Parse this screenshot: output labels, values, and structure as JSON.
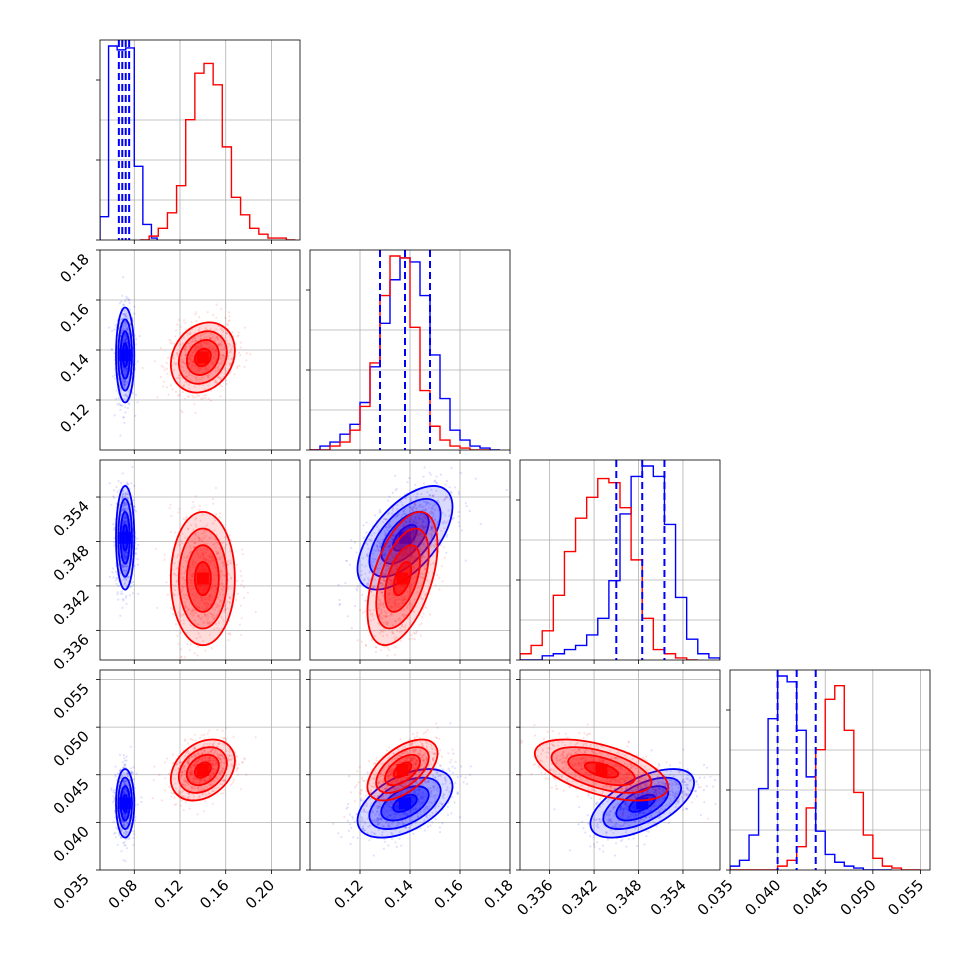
{
  "chart_data": {
    "type": "corner-plot",
    "colors": {
      "series_a": "#0000ff",
      "series_b": "#ff0000",
      "grid": "#b0b0b0"
    },
    "parameters": [
      {
        "range": [
          0.05,
          0.225
        ],
        "ticks": [
          0.08,
          0.12,
          0.16,
          0.2
        ],
        "tick_labels": [
          "0.08",
          "0.12",
          "0.16",
          "0.20"
        ]
      },
      {
        "range": [
          0.1,
          0.18
        ],
        "ticks": [
          0.12,
          0.14,
          0.16,
          0.18
        ],
        "tick_labels": [
          "0.12",
          "0.14",
          "0.16",
          "0.18"
        ]
      },
      {
        "range": [
          0.332,
          0.359
        ],
        "ticks": [
          0.336,
          0.342,
          0.348,
          0.354
        ],
        "tick_labels": [
          "0.336",
          "0.342",
          "0.348",
          "0.354"
        ]
      },
      {
        "range": [
          0.035,
          0.056
        ],
        "ticks": [
          0.035,
          0.04,
          0.045,
          0.05,
          0.055
        ],
        "tick_labels": [
          "0.035",
          "0.040",
          "0.045",
          "0.050",
          "0.055"
        ]
      }
    ],
    "series": [
      {
        "color": "#0000ff",
        "means": [
          0.072,
          0.138,
          0.3485,
          0.042
        ],
        "sds": [
          0.004,
          0.0095,
          0.0035,
          0.0018
        ],
        "correlations": {
          "0-1": 0.0,
          "0-2": 0.0,
          "0-3": 0.0,
          "1-2": 0.6,
          "1-3": 0.5,
          "2-3": 0.6
        },
        "quantiles": [
          [
            0.0665,
            0.0695,
            0.0725,
            0.0755
          ],
          [
            0.128,
            0.138,
            0.148
          ],
          [
            0.345,
            0.3485,
            0.3515
          ],
          [
            0.04,
            0.042,
            0.044
          ]
        ],
        "histograms": [
          {
            "edges": [
              0.05,
              0.0575,
              0.065,
              0.0725,
              0.08,
              0.0875,
              0.095,
              0.1
            ],
            "counts": [
              0.12,
              1.0,
              0.98,
              0.99,
              0.38,
              0.08,
              0.01
            ]
          },
          {
            "edges": [
              0.1,
              0.104,
              0.108,
              0.112,
              0.116,
              0.12,
              0.124,
              0.128,
              0.132,
              0.136,
              0.14,
              0.144,
              0.148,
              0.152,
              0.156,
              0.16,
              0.164,
              0.168,
              0.172,
              0.176
            ],
            "counts": [
              0.0,
              0.02,
              0.04,
              0.08,
              0.13,
              0.24,
              0.42,
              0.64,
              0.86,
              0.97,
              0.95,
              0.78,
              0.48,
              0.26,
              0.1,
              0.05,
              0.02,
              0.01,
              0.0
            ]
          },
          {
            "edges": [
              0.332,
              0.3335,
              0.335,
              0.3365,
              0.338,
              0.3395,
              0.341,
              0.3425,
              0.344,
              0.3455,
              0.347,
              0.3485,
              0.35,
              0.3515,
              0.353,
              0.3545,
              0.356,
              0.3575,
              0.359
            ],
            "counts": [
              0.0,
              0.0,
              0.02,
              0.03,
              0.05,
              0.07,
              0.12,
              0.2,
              0.38,
              0.7,
              0.88,
              0.93,
              0.88,
              0.65,
              0.3,
              0.1,
              0.03,
              0.01
            ]
          },
          {
            "edges": [
              0.035,
              0.036,
              0.037,
              0.038,
              0.039,
              0.04,
              0.041,
              0.042,
              0.043,
              0.044,
              0.045,
              0.046,
              0.047,
              0.048,
              0.049,
              0.05,
              0.051,
              0.052
            ],
            "counts": [
              0.02,
              0.05,
              0.18,
              0.42,
              0.78,
              1.0,
              0.97,
              0.72,
              0.48,
              0.2,
              0.08,
              0.04,
              0.02,
              0.01,
              0.0,
              0.0,
              0.0
            ]
          }
        ]
      },
      {
        "color": "#ff0000",
        "means": [
          0.14,
          0.137,
          0.343,
          0.0455
        ],
        "sds": [
          0.014,
          0.007,
          0.0045,
          0.0016
        ],
        "correlations": {
          "0-1": 0.2,
          "0-2": 0.0,
          "0-3": 0.3,
          "1-2": 0.5,
          "1-3": 0.55,
          "2-3": -0.55
        },
        "histograms": [
          {
            "edges": [
              0.085,
              0.093,
              0.101,
              0.109,
              0.117,
              0.125,
              0.133,
              0.141,
              0.149,
              0.157,
              0.165,
              0.173,
              0.181,
              0.189,
              0.197,
              0.205,
              0.213,
              0.221
            ],
            "counts": [
              0.0,
              0.02,
              0.06,
              0.14,
              0.28,
              0.62,
              0.86,
              0.91,
              0.8,
              0.48,
              0.22,
              0.13,
              0.06,
              0.03,
              0.01,
              0.01,
              0.0
            ]
          },
          {
            "edges": [
              0.1,
              0.104,
              0.108,
              0.112,
              0.116,
              0.12,
              0.124,
              0.128,
              0.132,
              0.136,
              0.14,
              0.144,
              0.148,
              0.152,
              0.156,
              0.16,
              0.164,
              0.168,
              0.172
            ],
            "counts": [
              0.0,
              0.0,
              0.02,
              0.04,
              0.1,
              0.22,
              0.44,
              0.78,
              0.98,
              0.97,
              0.62,
              0.3,
              0.12,
              0.05,
              0.02,
              0.01,
              0.0,
              0.0
            ]
          },
          {
            "edges": [
              0.332,
              0.3335,
              0.335,
              0.3365,
              0.338,
              0.3395,
              0.341,
              0.3425,
              0.344,
              0.3455,
              0.347,
              0.3485,
              0.35,
              0.3515,
              0.353,
              0.3545,
              0.356
            ],
            "counts": [
              0.03,
              0.07,
              0.14,
              0.31,
              0.52,
              0.68,
              0.78,
              0.87,
              0.85,
              0.73,
              0.48,
              0.2,
              0.05,
              0.03,
              0.01,
              0.0
            ]
          },
          {
            "edges": [
              0.035,
              0.036,
              0.037,
              0.038,
              0.039,
              0.04,
              0.041,
              0.042,
              0.043,
              0.044,
              0.045,
              0.046,
              0.047,
              0.048,
              0.049,
              0.05,
              0.051,
              0.052,
              0.053,
              0.054,
              0.055
            ],
            "counts": [
              0.0,
              0.0,
              0.0,
              0.0,
              0.0,
              0.02,
              0.05,
              0.12,
              0.32,
              0.62,
              0.88,
              0.95,
              0.72,
              0.4,
              0.18,
              0.06,
              0.02,
              0.01,
              0.0,
              0.0
            ]
          }
        ]
      }
    ],
    "contour_levels_sigma": [
      0.5,
      1.0,
      1.5,
      2.0
    ],
    "grid": true,
    "legend": "none"
  }
}
